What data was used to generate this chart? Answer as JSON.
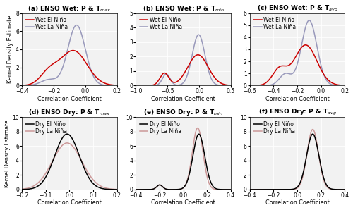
{
  "subplots": [
    {
      "label": "(a) ENSO Wet: P & T",
      "sublabel": "max",
      "xlim": [
        -0.4,
        0.2
      ],
      "ylim": [
        0,
        8
      ],
      "yticks": [
        0,
        2,
        4,
        6,
        8
      ],
      "xticks": [
        -0.4,
        -0.2,
        0,
        0.2
      ],
      "line1_color": "#cc0000",
      "line2_color": "#9999bb",
      "line1_label": "Wet El Niño",
      "line2_label": "Wet La Niña",
      "curves": [
        {
          "mean": -0.075,
          "std": 0.085,
          "weight": 0.82,
          "bump_mean": -0.23,
          "bump_std": 0.055,
          "bump_weight": 0.18
        },
        {
          "mean": -0.055,
          "std": 0.055,
          "weight": 0.92,
          "bump_mean": -0.23,
          "bump_std": 0.05,
          "bump_weight": 0.08
        }
      ]
    },
    {
      "label": "(b) ENSO Wet: P & T",
      "sublabel": "min",
      "xlim": [
        -1,
        0.5
      ],
      "ylim": [
        0,
        5
      ],
      "yticks": [
        0,
        1,
        2,
        3,
        4,
        5
      ],
      "xticks": [
        -1,
        -0.5,
        0,
        0.5
      ],
      "line1_color": "#cc0000",
      "line2_color": "#9999bb",
      "line1_label": "Wet El Niño",
      "line2_label": "Wet La Niña",
      "curves": [
        {
          "mean": -0.02,
          "std": 0.16,
          "weight": 0.85,
          "bump_mean": -0.55,
          "bump_std": 0.07,
          "bump_weight": 0.15
        },
        {
          "mean": -0.01,
          "std": 0.1,
          "weight": 0.88,
          "bump_mean": -0.52,
          "bump_std": 0.06,
          "bump_weight": 0.12
        }
      ]
    },
    {
      "label": "(c) ENSO Wet: P & T",
      "sublabel": "avg",
      "xlim": [
        -0.6,
        0.2
      ],
      "ylim": [
        0,
        6
      ],
      "yticks": [
        0,
        1,
        2,
        3,
        4,
        5,
        6
      ],
      "xticks": [
        -0.6,
        -0.4,
        -0.2,
        0,
        0.2
      ],
      "line1_color": "#cc0000",
      "line2_color": "#9999bb",
      "line1_label": "Wet El Niño",
      "line2_label": "Wet La Niña",
      "curves": [
        {
          "mean": -0.13,
          "std": 0.095,
          "weight": 0.8,
          "bump_mean": -0.35,
          "bump_std": 0.06,
          "bump_weight": 0.2
        },
        {
          "mean": -0.1,
          "std": 0.065,
          "weight": 0.88,
          "bump_mean": -0.3,
          "bump_std": 0.05,
          "bump_weight": 0.12
        }
      ]
    },
    {
      "label": "(d) ENSO Dry: P & T",
      "sublabel": "max",
      "xlim": [
        -0.2,
        0.2
      ],
      "ylim": [
        0,
        10
      ],
      "yticks": [
        0,
        2,
        4,
        6,
        8,
        10
      ],
      "xticks": [
        -0.2,
        -0.1,
        0,
        0.1,
        0.2
      ],
      "line1_color": "#000000",
      "line2_color": "#cc9999",
      "line1_label": "Dry El Niño",
      "line2_label": "Dry La Niña",
      "curves": [
        {
          "mean": -0.01,
          "std": 0.052,
          "weight": 1.0,
          "bump_mean": null,
          "bump_std": null,
          "bump_weight": 0
        },
        {
          "mean": -0.01,
          "std": 0.062,
          "weight": 1.0,
          "bump_mean": null,
          "bump_std": null,
          "bump_weight": 0
        }
      ]
    },
    {
      "label": "(e) ENSO Dry: P & T",
      "sublabel": "min",
      "xlim": [
        -0.4,
        0.4
      ],
      "ylim": [
        0,
        10
      ],
      "yticks": [
        0,
        2,
        4,
        6,
        8,
        10
      ],
      "xticks": [
        -0.4,
        -0.2,
        0,
        0.2,
        0.4
      ],
      "line1_color": "#000000",
      "line2_color": "#cc9999",
      "line1_label": "Dry El Niño",
      "line2_label": "Dry La Niña",
      "curves": [
        {
          "mean": 0.13,
          "std": 0.05,
          "weight": 0.96,
          "bump_mean": -0.2,
          "bump_std": 0.025,
          "bump_weight": 0.04
        },
        {
          "mean": 0.12,
          "std": 0.045,
          "weight": 0.96,
          "bump_mean": -0.2,
          "bump_std": 0.025,
          "bump_weight": 0.04
        }
      ]
    },
    {
      "label": "(f) ENSO Dry: P & T",
      "sublabel": "avg",
      "xlim": [
        -0.4,
        0.4
      ],
      "ylim": [
        0,
        10
      ],
      "yticks": [
        0,
        2,
        4,
        6,
        8,
        10
      ],
      "xticks": [
        -0.4,
        -0.2,
        0,
        0.2,
        0.4
      ],
      "line1_color": "#000000",
      "line2_color": "#cc9999",
      "line1_label": "Dry El Niño",
      "line2_label": "Dry La Niña",
      "curves": [
        {
          "mean": 0.13,
          "std": 0.052,
          "weight": 1.0,
          "bump_mean": null,
          "bump_std": null,
          "bump_weight": 0
        },
        {
          "mean": 0.13,
          "std": 0.048,
          "weight": 1.0,
          "bump_mean": null,
          "bump_std": null,
          "bump_weight": 0
        }
      ]
    }
  ],
  "ylabel": "Kernel Density Estimate",
  "xlabel": "Correlation Coefficient",
  "bg_color": "#f2f2f2",
  "title_fontsize": 6.5,
  "label_fontsize": 5.8,
  "tick_fontsize": 5.5,
  "legend_fontsize": 5.5,
  "linewidth": 1.1
}
